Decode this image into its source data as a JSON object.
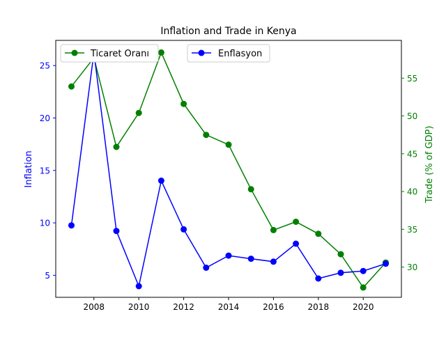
{
  "chart_data": {
    "type": "line",
    "title": "Inflation and Trade in Kenya",
    "x": [
      2007,
      2008,
      2009,
      2010,
      2011,
      2012,
      2013,
      2014,
      2015,
      2016,
      2017,
      2018,
      2019,
      2020,
      2021
    ],
    "x_ticks": [
      "2008",
      "2010",
      "2012",
      "2014",
      "2016",
      "2018",
      "2020"
    ],
    "xlim": [
      2006.3,
      2021.7
    ],
    "grid": false,
    "left_axis": {
      "label": "Inflation",
      "color": "#0000ff",
      "ylim": [
        2.9,
        27.4
      ],
      "ticks": [
        "5",
        "10",
        "15",
        "20",
        "25"
      ]
    },
    "right_axis": {
      "label": "Trade (% of GDP)",
      "color": "#008000",
      "ylim": [
        26.0,
        60.0
      ],
      "ticks": [
        "30",
        "35",
        "40",
        "45",
        "50",
        "55"
      ]
    },
    "series": [
      {
        "name": "Enflasyon",
        "axis": "left",
        "color": "#0000ff",
        "values": [
          9.76,
          26.24,
          9.23,
          3.96,
          14.02,
          9.38,
          5.72,
          6.88,
          6.58,
          6.3,
          8.01,
          4.69,
          5.24,
          5.41,
          6.11
        ]
      },
      {
        "name": "Ticaret Oranı",
        "axis": "right",
        "color": "#008000",
        "values": [
          53.9,
          57.7,
          45.9,
          50.4,
          58.4,
          51.6,
          47.5,
          46.2,
          40.3,
          34.9,
          36.0,
          34.4,
          31.7,
          27.3,
          30.6
        ]
      }
    ],
    "legends": [
      {
        "series": "Ticaret Oranı",
        "placement": "upper-left"
      },
      {
        "series": "Enflasyon",
        "placement": "upper-center"
      }
    ]
  }
}
